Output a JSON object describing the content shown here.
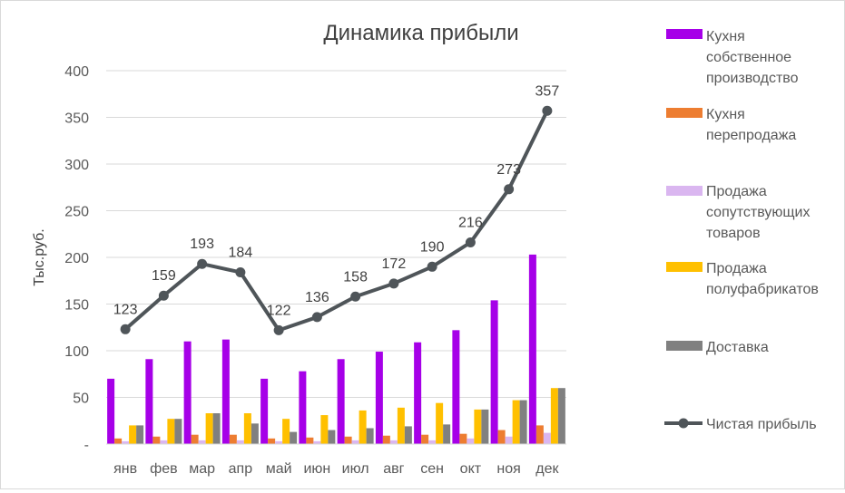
{
  "chart_data": {
    "type": "bar",
    "title": "Динамика прибыли",
    "xlabel": "",
    "ylabel": "Тыс.руб.",
    "ylim": [
      0,
      400
    ],
    "yticks": [
      0,
      50,
      100,
      150,
      200,
      250,
      300,
      350,
      400
    ],
    "ytick_labels": [
      "-",
      "50",
      "100",
      "150",
      "200",
      "250",
      "300",
      "350",
      "400"
    ],
    "grid": true,
    "legend_position": "right",
    "categories": [
      "янв",
      "фев",
      "мар",
      "апр",
      "май",
      "июн",
      "июл",
      "авг",
      "сен",
      "окт",
      "ноя",
      "дек"
    ],
    "series": [
      {
        "name": "Кухня собственное производство",
        "legend_lines": [
          "Кухня",
          "собственное",
          "производство"
        ],
        "type": "bar",
        "color": "#a600e8",
        "values": [
          70,
          91,
          110,
          112,
          70,
          78,
          91,
          99,
          109,
          122,
          154,
          203
        ]
      },
      {
        "name": "Кухня перепродажа",
        "legend_lines": [
          "Кухня",
          "перепродажа"
        ],
        "type": "bar",
        "color": "#ed7d31",
        "values": [
          6,
          8,
          10,
          10,
          6,
          7,
          8,
          9,
          10,
          11,
          15,
          20
        ]
      },
      {
        "name": "Продажа сопутствующих товаров",
        "legend_lines": [
          "Продажа",
          "сопутствующих",
          "товаров"
        ],
        "type": "bar",
        "color": "#dab6f0",
        "values": [
          3,
          4,
          4,
          4,
          3,
          3,
          4,
          4,
          4,
          6,
          8,
          12
        ]
      },
      {
        "name": "Продажа полуфабрикатов",
        "legend_lines": [
          "Продажа",
          "полуфабрикатов"
        ],
        "type": "bar",
        "color": "#ffc000",
        "values": [
          20,
          27,
          33,
          33,
          27,
          31,
          36,
          39,
          44,
          37,
          47,
          60
        ]
      },
      {
        "name": "Доставка",
        "legend_lines": [
          "Доставка"
        ],
        "type": "bar",
        "color": "#808080",
        "values": [
          20,
          27,
          33,
          22,
          13,
          15,
          17,
          19,
          21,
          37,
          47,
          60
        ]
      },
      {
        "name": "Чистая прибыль",
        "legend_lines": [
          "Чистая прибыль"
        ],
        "type": "line",
        "color": "#4f5559",
        "values": [
          123,
          159,
          193,
          184,
          122,
          136,
          158,
          172,
          190,
          216,
          273,
          357
        ],
        "data_labels": [
          "123",
          "159",
          "193",
          "184",
          "122",
          "136",
          "158",
          "172",
          "190",
          "216",
          "273",
          "357"
        ]
      }
    ]
  }
}
